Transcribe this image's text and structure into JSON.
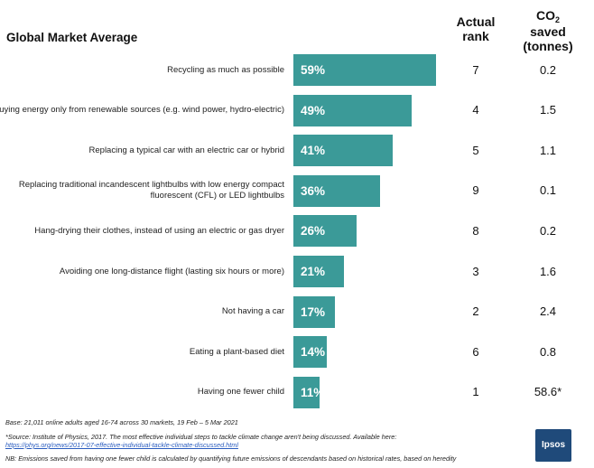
{
  "chart_data": {
    "type": "bar",
    "orientation": "horizontal",
    "title": "Global Market Average",
    "columns": {
      "rank_header": [
        "Actual",
        "rank"
      ],
      "co2_header": {
        "main": "CO",
        "sub": "2",
        "lines": [
          "saved",
          "(tonnes)"
        ]
      }
    },
    "xlim": [
      0,
      100
    ],
    "rows": [
      {
        "label": "Recycling as much as possible",
        "value": 59,
        "value_label": "59%",
        "rank": "7",
        "co2": "0.2"
      },
      {
        "label": "Buying energy only from renewable sources (e.g. wind power, hydro-electric)",
        "value": 49,
        "value_label": "49%",
        "rank": "4",
        "co2": "1.5"
      },
      {
        "label": "Replacing a typical car with an electric car or hybrid",
        "value": 41,
        "value_label": "41%",
        "rank": "5",
        "co2": "1.1"
      },
      {
        "label": "Replacing traditional incandescent lightbulbs with low energy compact fluorescent (CFL) or LED lightbulbs",
        "value": 36,
        "value_label": "36%",
        "rank": "9",
        "co2": "0.1"
      },
      {
        "label": "Hang-drying their clothes, instead of using an electric or gas dryer",
        "value": 26,
        "value_label": "26%",
        "rank": "8",
        "co2": "0.2"
      },
      {
        "label": "Avoiding one long-distance flight (lasting six hours or more)",
        "value": 21,
        "value_label": "21%",
        "rank": "3",
        "co2": "1.6"
      },
      {
        "label": "Not having a car",
        "value": 17,
        "value_label": "17%",
        "rank": "2",
        "co2": "2.4"
      },
      {
        "label": "Eating a plant-based diet",
        "value": 14,
        "value_label": "14%",
        "rank": "6",
        "co2": "0.8"
      },
      {
        "label": "Having one fewer child",
        "value": 11,
        "value_label": "11%",
        "rank": "1",
        "co2": "58.6*"
      }
    ],
    "bar_color": "#3b9a98"
  },
  "footer": {
    "base": "Base: 21,011 online adults aged 16-74 across 30 markets,  19 Feb – 5 Mar 2021",
    "source": "*Source: Institute of Physics, 2017. The most effective individual steps to tackle climate change aren't being discussed. Available here:",
    "link": "https://phys.org/news/2017-07-effective-individual-tackle-climate-discussed.html",
    "note": "NB: Emissions saved from having one fewer child is calculated by quantifying future emissions of descendants based on historical rates, based on heredity"
  },
  "logo": {
    "text": "Ipsos"
  }
}
